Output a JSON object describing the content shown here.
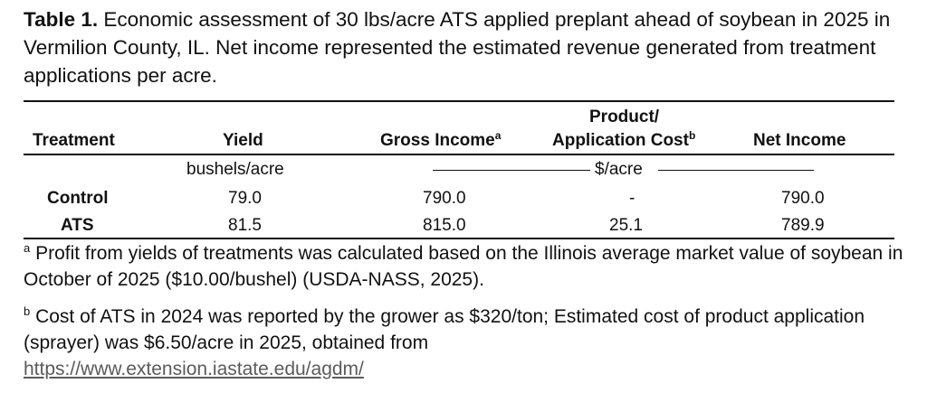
{
  "caption": {
    "label": "Table 1.",
    "text": " Economic assessment of 30 lbs/acre ATS applied preplant ahead of soybean in 2025 in Vermilion County, IL. Net income represented the estimated revenue generated from treatment applications per acre."
  },
  "headers": {
    "treatment": "Treatment",
    "yield": "Yield",
    "gross_income": "Gross Income",
    "gross_income_sup": "a",
    "product_line1": "Product/",
    "product_line2": "Application Cost",
    "product_sup": "b",
    "net_income": "Net Income"
  },
  "units": {
    "yield": "bushels/acre",
    "money": "$/acre"
  },
  "rows": [
    {
      "treatment": "Control",
      "yield": "79.0",
      "gross_income": "790.0",
      "cost": "-",
      "net_income": "790.0"
    },
    {
      "treatment": "ATS",
      "yield": "81.5",
      "gross_income": "815.0",
      "cost": "25.1",
      "net_income": "789.9"
    }
  ],
  "footnotes": {
    "a_mark": "a",
    "a_text": " Profit from yields of treatments was calculated based on the Illinois average market value of soybean in October of 2025 ($10.00/bushel) (USDA-NASS, 2025).",
    "b_mark": "b",
    "b_text": " Cost of ATS in 2024 was reported by the grower as $320/ton; Estimated cost of product application (sprayer) was $6.50/acre in 2025, obtained from",
    "link": "https://www.extension.iastate.edu/agdm/"
  }
}
